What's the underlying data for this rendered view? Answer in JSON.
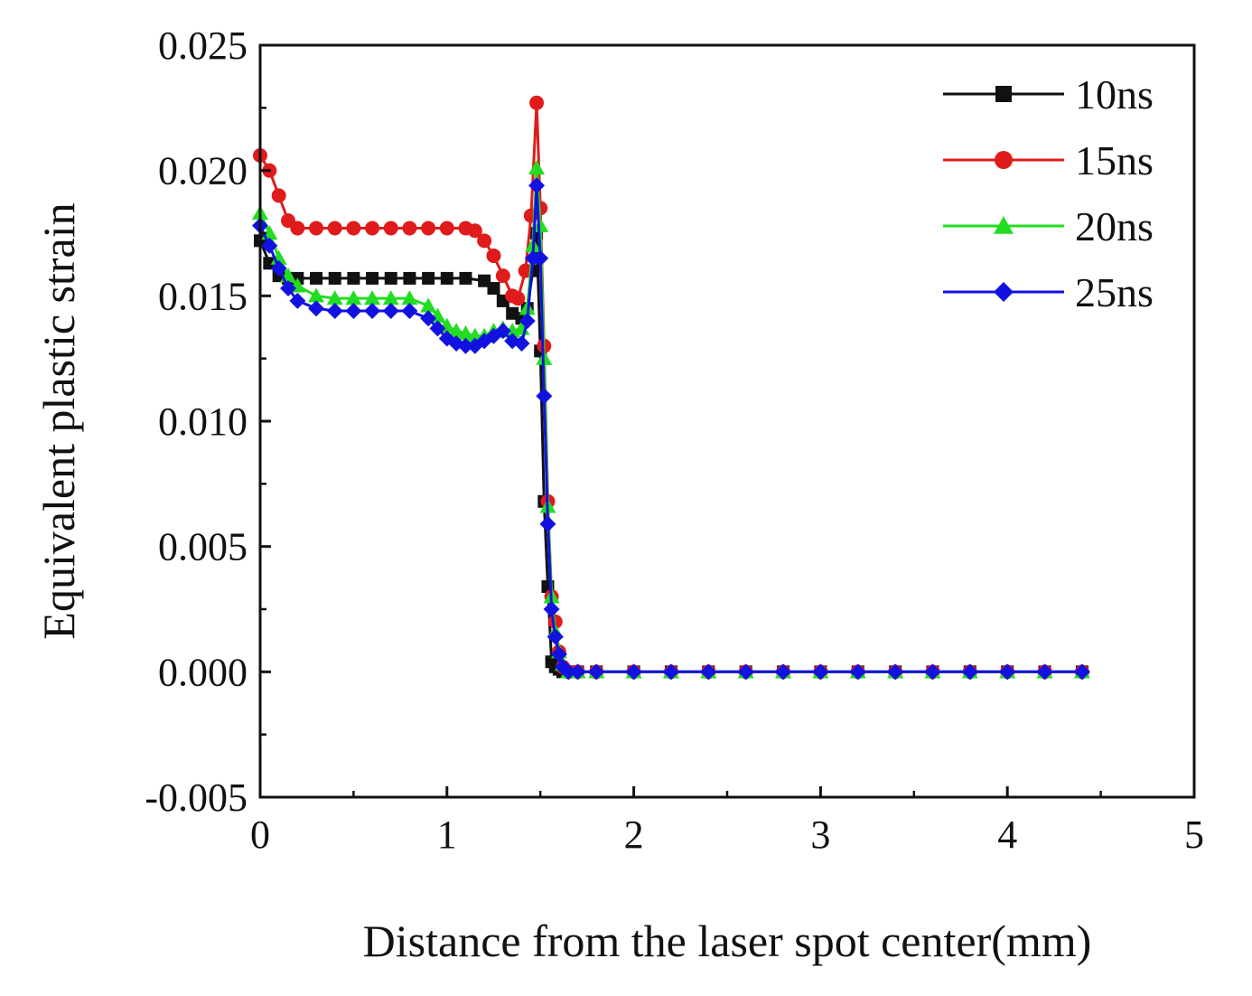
{
  "chart_data": {
    "type": "line",
    "title": "",
    "xlabel": "Distance from the laser spot center(mm)",
    "ylabel": "Equivalent plastic strain",
    "xlim": [
      0,
      5
    ],
    "ylim": [
      -0.005,
      0.025
    ],
    "xticks": [
      0,
      1,
      2,
      3,
      4,
      5
    ],
    "xtick_labels": [
      "0",
      "1",
      "2",
      "3",
      "4",
      "5"
    ],
    "yticks": [
      -0.005,
      0.0,
      0.005,
      0.01,
      0.015,
      0.02,
      0.025
    ],
    "ytick_labels": [
      "-0.005",
      "0.000",
      "0.005",
      "0.010",
      "0.015",
      "0.020",
      "0.025"
    ],
    "grid": false,
    "legend_position": "top-right",
    "series": [
      {
        "name": "10ns",
        "color": "#111111",
        "marker": "square",
        "x": [
          0,
          0.05,
          0.1,
          0.15,
          0.2,
          0.3,
          0.4,
          0.5,
          0.6,
          0.7,
          0.8,
          0.9,
          1.0,
          1.1,
          1.2,
          1.25,
          1.3,
          1.35,
          1.4,
          1.43,
          1.46,
          1.48,
          1.5,
          1.52,
          1.54,
          1.56,
          1.58,
          1.6,
          1.62,
          1.65,
          1.7,
          1.8,
          2.0,
          2.2,
          2.4,
          2.6,
          2.8,
          3.0,
          3.2,
          3.4,
          3.6,
          3.8,
          4.0,
          4.2,
          4.4
        ],
        "y": [
          0.0172,
          0.0163,
          0.0158,
          0.0157,
          0.0157,
          0.0157,
          0.0157,
          0.0157,
          0.0157,
          0.0157,
          0.0157,
          0.0157,
          0.0157,
          0.0157,
          0.0156,
          0.0153,
          0.0148,
          0.0143,
          0.0141,
          0.0145,
          0.016,
          0.0175,
          0.0128,
          0.0068,
          0.0034,
          0.0004,
          0.0002,
          0.0001,
          0.0,
          0.0,
          0.0,
          0.0,
          0.0,
          0.0,
          0.0,
          0.0,
          0.0,
          0.0,
          0.0,
          0.0,
          0.0,
          0.0,
          0.0,
          0.0,
          0.0
        ]
      },
      {
        "name": "15ns",
        "color": "#e01b1b",
        "marker": "circle",
        "x": [
          0,
          0.05,
          0.1,
          0.15,
          0.2,
          0.3,
          0.4,
          0.5,
          0.6,
          0.7,
          0.8,
          0.9,
          1.0,
          1.1,
          1.15,
          1.2,
          1.25,
          1.3,
          1.35,
          1.38,
          1.42,
          1.45,
          1.48,
          1.5,
          1.52,
          1.54,
          1.56,
          1.58,
          1.6,
          1.62,
          1.65,
          1.7,
          1.8,
          2.0,
          2.2,
          2.4,
          2.6,
          2.8,
          3.0,
          3.2,
          3.4,
          3.6,
          3.8,
          4.0,
          4.2,
          4.4
        ],
        "y": [
          0.0206,
          0.02,
          0.019,
          0.018,
          0.0177,
          0.0177,
          0.0177,
          0.0177,
          0.0177,
          0.0177,
          0.0177,
          0.0177,
          0.0177,
          0.0177,
          0.0176,
          0.0172,
          0.0166,
          0.0158,
          0.015,
          0.0149,
          0.016,
          0.0182,
          0.0227,
          0.0185,
          0.013,
          0.0068,
          0.003,
          0.002,
          0.0008,
          0.0002,
          0.0,
          0.0,
          0.0,
          0.0,
          0.0,
          0.0,
          0.0,
          0.0,
          0.0,
          0.0,
          0.0,
          0.0,
          0.0,
          0.0,
          0.0,
          0.0
        ]
      },
      {
        "name": "20ns",
        "color": "#22dd22",
        "marker": "triangle",
        "x": [
          0,
          0.05,
          0.1,
          0.15,
          0.2,
          0.3,
          0.4,
          0.5,
          0.6,
          0.7,
          0.8,
          0.9,
          0.95,
          1.0,
          1.05,
          1.1,
          1.15,
          1.2,
          1.25,
          1.3,
          1.35,
          1.4,
          1.43,
          1.46,
          1.48,
          1.5,
          1.52,
          1.54,
          1.56,
          1.58,
          1.6,
          1.62,
          1.65,
          1.7,
          1.8,
          2.0,
          2.2,
          2.4,
          2.6,
          2.8,
          3.0,
          3.2,
          3.4,
          3.6,
          3.8,
          4.0,
          4.2,
          4.4
        ],
        "y": [
          0.0183,
          0.0175,
          0.0165,
          0.0158,
          0.0154,
          0.015,
          0.0149,
          0.0149,
          0.0149,
          0.0149,
          0.0149,
          0.0146,
          0.0142,
          0.0138,
          0.0136,
          0.0135,
          0.0134,
          0.0134,
          0.0136,
          0.0137,
          0.0136,
          0.0137,
          0.0145,
          0.017,
          0.0201,
          0.0178,
          0.0125,
          0.0066,
          0.003,
          0.0016,
          0.0008,
          0.0003,
          0.0,
          0.0,
          0.0,
          0.0,
          0.0,
          0.0,
          0.0,
          0.0,
          0.0,
          0.0,
          0.0,
          0.0,
          0.0,
          0.0,
          0.0,
          0.0
        ]
      },
      {
        "name": "25ns",
        "color": "#1212e0",
        "marker": "diamond",
        "x": [
          0,
          0.05,
          0.1,
          0.15,
          0.2,
          0.3,
          0.4,
          0.5,
          0.6,
          0.7,
          0.8,
          0.9,
          0.95,
          1.0,
          1.05,
          1.1,
          1.15,
          1.2,
          1.25,
          1.3,
          1.35,
          1.4,
          1.43,
          1.46,
          1.48,
          1.5,
          1.52,
          1.54,
          1.56,
          1.58,
          1.6,
          1.62,
          1.65,
          1.7,
          1.8,
          2.0,
          2.2,
          2.4,
          2.6,
          2.8,
          3.0,
          3.2,
          3.4,
          3.6,
          3.8,
          4.0,
          4.2,
          4.4
        ],
        "y": [
          0.0178,
          0.017,
          0.0161,
          0.0153,
          0.0148,
          0.0145,
          0.0144,
          0.0144,
          0.0144,
          0.0144,
          0.0144,
          0.0141,
          0.0137,
          0.0133,
          0.0131,
          0.013,
          0.013,
          0.0132,
          0.0134,
          0.0136,
          0.0132,
          0.0131,
          0.014,
          0.0165,
          0.0194,
          0.0165,
          0.011,
          0.0059,
          0.0025,
          0.0014,
          0.0007,
          0.0002,
          0.0,
          0.0,
          0.0,
          0.0,
          0.0,
          0.0,
          0.0,
          0.0,
          0.0,
          0.0,
          0.0,
          0.0,
          0.0,
          0.0,
          0.0,
          0.0
        ]
      }
    ]
  }
}
